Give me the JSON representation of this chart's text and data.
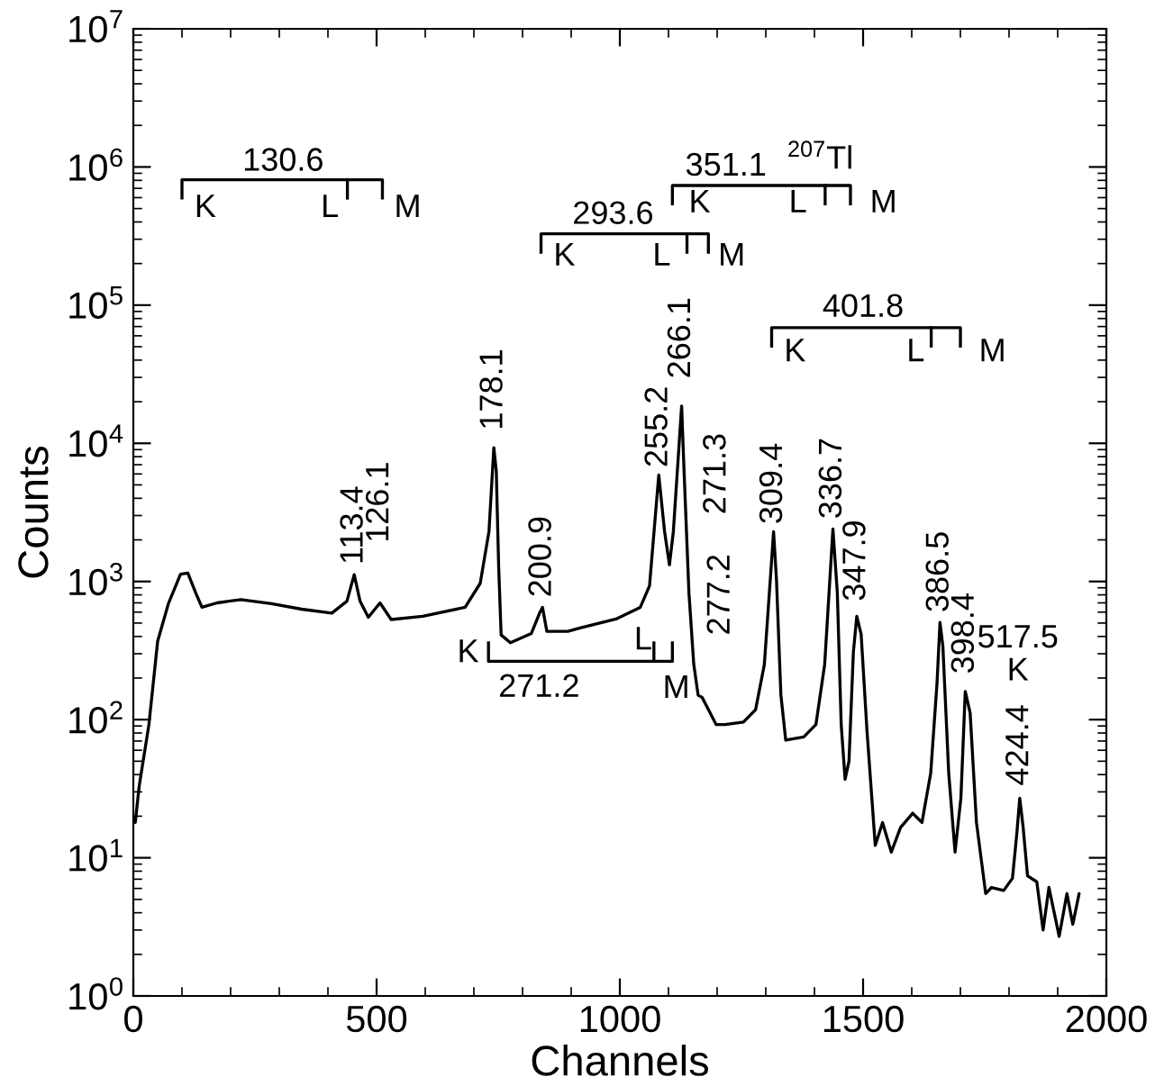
{
  "chart_data": {
    "type": "line",
    "xlabel": "Channels",
    "ylabel": "Counts",
    "log": "y",
    "xlim": [
      0,
      2000
    ],
    "xticks": [
      0,
      500,
      1000,
      1500,
      2000
    ],
    "ylim": [
      1,
      10000000
    ],
    "yticks": [
      {
        "value": 1,
        "label": "10$^{0}$"
      },
      {
        "value": 10,
        "label": "10$^{1}$"
      },
      {
        "value": 100,
        "label": "10$^{2}$"
      },
      {
        "value": 1000,
        "label": "10$^{3}$"
      },
      {
        "value": 10000,
        "label": "10$^{4}$"
      },
      {
        "value": 100000,
        "label": "10$^{5}$"
      },
      {
        "value": 1000000,
        "label": "10$^{6}$"
      },
      {
        "value": 10000000,
        "label": "10$^{7}$"
      }
    ],
    "grid": false,
    "legend": false,
    "marker": "none",
    "line_style": "solid",
    "series": [
      {
        "color": "#000000",
        "x": [
          4,
          12,
          32,
          50,
          72,
          97,
          112,
          128,
          141,
          172,
          221,
          284,
          346,
          408,
          439,
          454,
          466,
          483,
          507,
          530,
          595,
          682,
          713,
          731,
          741,
          746,
          751,
          756,
          775,
          818,
          835,
          841,
          850,
          893,
          918,
          992,
          1042,
          1061,
          1080,
          1092,
          1102,
          1110,
          1127,
          1132,
          1142,
          1152,
          1161,
          1169,
          1179,
          1198,
          1216,
          1254,
          1279,
          1297,
          1310,
          1316,
          1322,
          1331,
          1341,
          1378,
          1403,
          1421,
          1438,
          1447,
          1455,
          1463,
          1471,
          1480,
          1487,
          1496,
          1508,
          1525,
          1540,
          1558,
          1577,
          1602,
          1621,
          1639,
          1652,
          1658,
          1664,
          1676,
          1689,
          1701,
          1710,
          1720,
          1733,
          1752,
          1764,
          1789,
          1807,
          1816,
          1822,
          1829,
          1838,
          1857,
          1870,
          1882,
          1903,
          1919,
          1931,
          1944
        ],
        "values": [
          18,
          33,
          92,
          370,
          690,
          1130,
          1150,
          830,
          650,
          700,
          740,
          690,
          630,
          590,
          720,
          1120,
          720,
          550,
          700,
          530,
          560,
          650,
          970,
          2300,
          9300,
          6300,
          1260,
          410,
          360,
          420,
          590,
          650,
          435,
          435,
          460,
          535,
          650,
          930,
          5900,
          2290,
          1320,
          2300,
          18600,
          6300,
          830,
          250,
          150,
          145,
          124,
          92,
          92,
          96,
          118,
          250,
          1130,
          2290,
          1020,
          151,
          71,
          75,
          92,
          250,
          2400,
          830,
          92,
          37,
          50,
          307,
          560,
          415,
          83,
          12.3,
          18,
          11,
          16.6,
          21,
          18,
          41,
          185,
          505,
          340,
          41,
          11,
          27,
          160,
          112,
          18,
          5.5,
          6.1,
          5.8,
          7.1,
          15,
          27,
          16.6,
          7.4,
          6.7,
          3,
          6.1,
          2.7,
          5.5,
          3.3,
          5.5
        ]
      }
    ],
    "annotations": [
      "130.6",
      "K",
      "L",
      "M",
      "293.6",
      "K",
      "L",
      "M",
      "351.1",
      "K",
      "L",
      "M",
      "401.8",
      "K",
      "L",
      "M",
      "271.2",
      "K",
      "L",
      "M",
      "$^{207}$Tl",
      "271.3",
      "277.2",
      "517.5",
      "K",
      {
        "text": "113.4",
        "x": 454,
        "y": 1120
      },
      {
        "text": "126.1",
        "x": 507,
        "y": 700
      },
      {
        "text": "178.1",
        "x": 741,
        "y": 9300
      },
      {
        "text": "200.9",
        "x": 841,
        "y": 650
      },
      {
        "text": "255.2",
        "x": 1080,
        "y": 5900
      },
      {
        "text": "266.1",
        "x": 1127,
        "y": 18600
      },
      {
        "text": "309.4",
        "x": 1316,
        "y": 2290
      },
      {
        "text": "336.7",
        "x": 1438,
        "y": 2400
      },
      {
        "text": "347.9",
        "x": 1487,
        "y": 560
      },
      {
        "text": "386.5",
        "x": 1658,
        "y": 505
      },
      {
        "text": "398.4",
        "x": 1710,
        "y": 160
      },
      {
        "text": "424.4",
        "x": 1822,
        "y": 27
      }
    ]
  }
}
